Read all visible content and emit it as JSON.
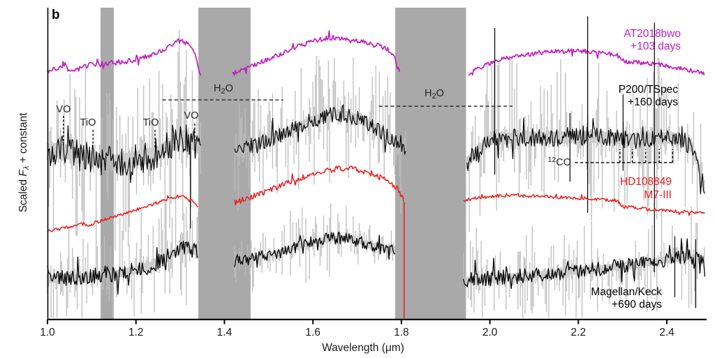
{
  "figure": {
    "panel_label": "b",
    "background": "#ffffff"
  },
  "chart_data": {
    "type": "line",
    "title": "",
    "xlabel": "Wavelength (μm)",
    "ylabel": "Scaled Fλ + constant",
    "ylabel_parts": {
      "pre": "Scaled ",
      "symbol": "F",
      "subscript": "λ",
      "post": " + constant"
    },
    "xlim": [
      1.0,
      2.49
    ],
    "ylim": [
      0,
      100
    ],
    "y_units": "arbitrary scaled flux (0-100 of plot height)",
    "grid": false,
    "legend_position": "right-inline",
    "xticks": [
      1.0,
      1.2,
      1.4,
      1.6,
      1.8,
      2.0,
      2.2,
      2.4
    ],
    "xtick_labels": [
      "1.0",
      "1.2",
      "1.4",
      "1.6",
      "1.8",
      "2.0",
      "2.2",
      "2.4"
    ],
    "telluric_bands": {
      "color": "#a9a9a9",
      "ranges": [
        [
          1.12,
          1.15
        ],
        [
          1.341,
          1.459
        ],
        [
          1.786,
          1.946
        ]
      ]
    },
    "noise_color": "#bdbdbd",
    "series": [
      {
        "name": "AT2018bwo +103 days",
        "color": "#c21ec2",
        "width": 1.7,
        "line_noise": [
          0.8,
          0.8,
          0.7
        ],
        "gray_amp": [
          0,
          0,
          0
        ],
        "segments": [
          [
            [
              1.0,
              78.7
            ],
            [
              1.012,
              80.3
            ],
            [
              1.025,
              79.8
            ],
            [
              1.038,
              81.9
            ],
            [
              1.048,
              79.8
            ],
            [
              1.058,
              79.2
            ],
            [
              1.075,
              80.5
            ],
            [
              1.095,
              81.4
            ],
            [
              1.12,
              81.7
            ],
            [
              1.15,
              82.1
            ],
            [
              1.18,
              82.6
            ],
            [
              1.21,
              83.4
            ],
            [
              1.24,
              84.8
            ],
            [
              1.265,
              86.4
            ],
            [
              1.285,
              88.1
            ],
            [
              1.3,
              89.3
            ],
            [
              1.312,
              88.6
            ],
            [
              1.322,
              88.4
            ],
            [
              1.33,
              86.1
            ],
            [
              1.338,
              82.1
            ],
            [
              1.347,
              77.6
            ]
          ],
          [
            [
              1.418,
              78.5
            ],
            [
              1.432,
              79.4
            ],
            [
              1.452,
              80.3
            ],
            [
              1.475,
              81.9
            ],
            [
              1.5,
              83.2
            ],
            [
              1.528,
              85.0
            ],
            [
              1.556,
              86.8
            ],
            [
              1.585,
              88.2
            ],
            [
              1.615,
              89.5
            ],
            [
              1.64,
              90.2
            ],
            [
              1.662,
              89.7
            ],
            [
              1.685,
              89.3
            ],
            [
              1.708,
              88.8
            ],
            [
              1.73,
              88.2
            ],
            [
              1.752,
              87.2
            ],
            [
              1.77,
              86.4
            ],
            [
              1.782,
              84.3
            ],
            [
              1.79,
              81.4
            ],
            [
              1.796,
              79.2
            ]
          ],
          [
            [
              1.952,
              78.5
            ],
            [
              1.972,
              80.1
            ],
            [
              2.0,
              82.1
            ],
            [
              2.03,
              83.4
            ],
            [
              2.065,
              84.3
            ],
            [
              2.105,
              85.2
            ],
            [
              2.15,
              85.7
            ],
            [
              2.195,
              85.9
            ],
            [
              2.235,
              85.7
            ],
            [
              2.265,
              85.0
            ],
            [
              2.288,
              84.6
            ],
            [
              2.298,
              83.0
            ],
            [
              2.315,
              82.3
            ],
            [
              2.345,
              82.1
            ],
            [
              2.375,
              81.7
            ],
            [
              2.405,
              81.0
            ],
            [
              2.435,
              80.1
            ],
            [
              2.462,
              79.4
            ],
            [
              2.486,
              78.7
            ]
          ]
        ],
        "spikes": []
      },
      {
        "name": "P200/TSpec +160 days",
        "color": "#000000",
        "width": 1.15,
        "line_noise": [
          5.0,
          2.6,
          3.0
        ],
        "gray_amp": [
          13,
          8,
          10
        ],
        "segments": [
          [
            [
              1.0,
              53.9
            ],
            [
              1.02,
              54.1
            ],
            [
              1.045,
              53.5
            ],
            [
              1.07,
              52.3
            ],
            [
              1.095,
              51.5
            ],
            [
              1.12,
              50.8
            ],
            [
              1.15,
              50.3
            ],
            [
              1.18,
              50.8
            ],
            [
              1.21,
              51.7
            ],
            [
              1.245,
              52.8
            ],
            [
              1.275,
              55.5
            ],
            [
              1.298,
              57.5
            ],
            [
              1.312,
              58.6
            ],
            [
              1.322,
              57.0
            ],
            [
              1.333,
              56.2
            ],
            [
              1.347,
              54.1
            ]
          ],
          [
            [
              1.423,
              53.5
            ],
            [
              1.45,
              54.8
            ],
            [
              1.482,
              56.6
            ],
            [
              1.52,
              58.6
            ],
            [
              1.558,
              60.9
            ],
            [
              1.598,
              63.6
            ],
            [
              1.63,
              65.1
            ],
            [
              1.658,
              65.8
            ],
            [
              1.688,
              64.8
            ],
            [
              1.718,
              63.1
            ],
            [
              1.748,
              60.6
            ],
            [
              1.775,
              58.0
            ],
            [
              1.81,
              54.4
            ]
          ],
          [
            [
              1.948,
              50.1
            ],
            [
              1.978,
              54.4
            ],
            [
              2.002,
              57.5
            ],
            [
              2.04,
              57.9
            ],
            [
              2.085,
              58.2
            ],
            [
              2.13,
              58.2
            ],
            [
              2.175,
              58.4
            ],
            [
              2.215,
              58.6
            ],
            [
              2.255,
              58.2
            ],
            [
              2.295,
              57.7
            ],
            [
              2.335,
              57.5
            ],
            [
              2.375,
              57.9
            ],
            [
              2.41,
              58.2
            ],
            [
              2.438,
              57.0
            ],
            [
              2.458,
              54.8
            ],
            [
              2.472,
              48.8
            ],
            [
              2.486,
              41.6
            ]
          ]
        ],
        "spikes": [
          [
            1.323,
            29.0,
            58.0
          ],
          [
            2.011,
            46.3,
            93.3
          ],
          [
            2.181,
            44.0,
            66.0
          ],
          [
            2.221,
            34.0,
            97.0
          ],
          [
            2.301,
            47.5,
            72.0
          ],
          [
            2.372,
            15.0,
            95.0
          ]
        ]
      },
      {
        "name": "HD108849 M7-III",
        "color": "#ee1c1c",
        "width": 1.5,
        "line_noise": [
          0.5,
          0.9,
          0.5
        ],
        "gray_amp": [
          0,
          0,
          0
        ],
        "segments": [
          [
            [
              1.0,
              28.0
            ],
            [
              1.028,
              28.9
            ],
            [
              1.048,
              29.5
            ],
            [
              1.068,
              30.0
            ],
            [
              1.083,
              30.6
            ],
            [
              1.093,
              29.8
            ],
            [
              1.11,
              31.1
            ],
            [
              1.132,
              31.9
            ],
            [
              1.152,
              32.9
            ],
            [
              1.172,
              33.8
            ],
            [
              1.192,
              34.7
            ],
            [
              1.212,
              35.6
            ],
            [
              1.232,
              36.5
            ],
            [
              1.252,
              37.4
            ],
            [
              1.272,
              38.3
            ],
            [
              1.292,
              39.2
            ],
            [
              1.305,
              39.4
            ],
            [
              1.318,
              38.0
            ],
            [
              1.33,
              37.4
            ],
            [
              1.341,
              36.2
            ]
          ],
          [
            [
              1.423,
              37.4
            ],
            [
              1.45,
              38.5
            ],
            [
              1.482,
              40.2
            ],
            [
              1.52,
              42.3
            ],
            [
              1.558,
              44.5
            ],
            [
              1.598,
              46.3
            ],
            [
              1.635,
              47.7
            ],
            [
              1.662,
              48.3
            ],
            [
              1.69,
              48.1
            ],
            [
              1.718,
              47.2
            ],
            [
              1.748,
              45.9
            ],
            [
              1.775,
              44.1
            ],
            [
              1.795,
              40.9
            ],
            [
              1.806,
              37.6
            ]
          ],
          [
            [
              1.94,
              37.8
            ],
            [
              1.968,
              38.7
            ],
            [
              2.0,
              39.2
            ],
            [
              2.05,
              39.5
            ],
            [
              2.1,
              39.4
            ],
            [
              2.15,
              39.1
            ],
            [
              2.2,
              38.7
            ],
            [
              2.25,
              38.3
            ],
            [
              2.288,
              37.9
            ],
            [
              2.3,
              36.0
            ],
            [
              2.33,
              35.8
            ],
            [
              2.358,
              35.1
            ],
            [
              2.4,
              34.7
            ],
            [
              2.45,
              34.2
            ],
            [
              2.486,
              34.0
            ]
          ]
        ],
        "spikes": [],
        "dropline": {
          "lambda": 1.806,
          "f_top": 37.6,
          "f_bottom": 0.2
        }
      },
      {
        "name": "Magellan/Keck +690 days",
        "color": "#000000",
        "width": 1.3,
        "line_noise": [
          2.6,
          2.0,
          2.4
        ],
        "gray_amp": [
          7,
          4.5,
          6
        ],
        "segments": [
          [
            [
              1.0,
              12.8
            ],
            [
              1.04,
              13.0
            ],
            [
              1.08,
              13.4
            ],
            [
              1.12,
              13.9
            ],
            [
              1.16,
              14.5
            ],
            [
              1.2,
              15.7
            ],
            [
              1.24,
              17.4
            ],
            [
              1.272,
              20.1
            ],
            [
              1.3,
              22.4
            ],
            [
              1.318,
              22.8
            ],
            [
              1.332,
              21.9
            ],
            [
              1.341,
              21.0
            ]
          ],
          [
            [
              1.423,
              18.6
            ],
            [
              1.46,
              19.2
            ],
            [
              1.5,
              20.3
            ],
            [
              1.54,
              22.0
            ],
            [
              1.58,
              23.8
            ],
            [
              1.62,
              25.3
            ],
            [
              1.658,
              26.0
            ],
            [
              1.7,
              25.1
            ],
            [
              1.73,
              23.9
            ],
            [
              1.76,
              22.4
            ],
            [
              1.786,
              21.7
            ]
          ],
          [
            [
              1.94,
              12.3
            ],
            [
              1.98,
              12.8
            ],
            [
              2.02,
              13.2
            ],
            [
              2.06,
              13.6
            ],
            [
              2.1,
              14.1
            ],
            [
              2.15,
              14.8
            ],
            [
              2.2,
              15.4
            ],
            [
              2.25,
              16.1
            ],
            [
              2.3,
              17.0
            ],
            [
              2.35,
              17.9
            ],
            [
              2.4,
              19.0
            ],
            [
              2.44,
              19.9
            ],
            [
              2.486,
              19.2
            ]
          ]
        ],
        "spikes": [
          [
            2.418,
            7.0,
            26.5
          ],
          [
            2.465,
            3.5,
            25.5
          ]
        ]
      }
    ],
    "annotations": {
      "molecular": [
        {
          "label": "VO",
          "tick_lambda": 1.036,
          "tick_f": [
            65.1,
            55.3
          ]
        },
        {
          "label": "TiO",
          "tick_lambda": 1.103,
          "tick_f": [
            60.6,
            54.8
          ]
        },
        {
          "label": "TiO",
          "tick_lambda": 1.243,
          "tick_f": [
            60.6,
            54.8
          ]
        },
        {
          "label": "VO",
          "tick_lambda": 1.333,
          "tick_f": [
            62.6,
            56.8
          ]
        }
      ],
      "h2o_bands": [
        {
          "label": "H2O",
          "parts": {
            "pre": "H",
            "sub": "2",
            "post": "O"
          },
          "line_f": 70.2,
          "range": [
            1.26,
            1.533
          ]
        },
        {
          "label": "H2O",
          "parts": {
            "pre": "H",
            "sub": "2",
            "post": "O"
          },
          "line_f": 68.2,
          "range": [
            1.749,
            2.051
          ]
        }
      ],
      "co_band": {
        "label": "12CO",
        "parts": {
          "sup": "12",
          "base": "CO"
        },
        "line_f": 50.1,
        "range": [
          2.192,
          2.413
        ],
        "bandheads": [
          2.294,
          2.322,
          2.352,
          2.383,
          2.413
        ],
        "tick_top_f": 54.4
      }
    },
    "legends": [
      {
        "lines": [
          "AT2018bwo",
          "+103 days"
        ],
        "color": "#c21ec2"
      },
      {
        "lines": [
          "P200/TSpec",
          "+160 days"
        ],
        "color": "#000000"
      },
      {
        "lines": [
          "HD108849",
          "M7-III"
        ],
        "color": "#ee1c1c"
      },
      {
        "lines": [
          "Magellan/Keck",
          "+690 days"
        ],
        "color": "#000000"
      }
    ]
  }
}
